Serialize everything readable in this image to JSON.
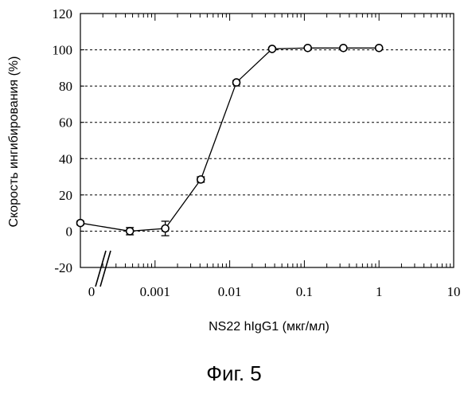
{
  "chart_data": {
    "type": "line",
    "xlabel": "NS22 hIgG1 (мкг/мл)",
    "ylabel": "Скорость ингибирования (%)",
    "x_scale": "log",
    "xlim": [
      0.0001,
      10
    ],
    "ylim": [
      -20,
      120
    ],
    "x_ticks": [
      {
        "label": "0",
        "value": null
      },
      {
        "label": "0.001",
        "value": 0.001
      },
      {
        "label": "0.01",
        "value": 0.01
      },
      {
        "label": "0.1",
        "value": 0.1
      },
      {
        "label": "1",
        "value": 1
      },
      {
        "label": "10",
        "value": 10
      }
    ],
    "y_ticks": [
      -20,
      0,
      20,
      40,
      60,
      80,
      100,
      120
    ],
    "grid": "horizontal dashed",
    "axis_break": "x",
    "series": [
      {
        "points": [
          {
            "x": 0,
            "y": 4.5,
            "err": 1
          },
          {
            "x": 0.00046,
            "y": 0,
            "err": 2
          },
          {
            "x": 0.00137,
            "y": 1.5,
            "err": 4
          },
          {
            "x": 0.0041,
            "y": 28.5,
            "err": 1.5
          },
          {
            "x": 0.0123,
            "y": 82,
            "err": 1
          },
          {
            "x": 0.037,
            "y": 100.5,
            "err": 0.5
          },
          {
            "x": 0.111,
            "y": 101,
            "err": 0.5
          },
          {
            "x": 0.333,
            "y": 101,
            "err": 0.5
          },
          {
            "x": 1,
            "y": 101,
            "err": 0.5
          }
        ]
      }
    ]
  },
  "figure_caption": "Фиг. 5"
}
